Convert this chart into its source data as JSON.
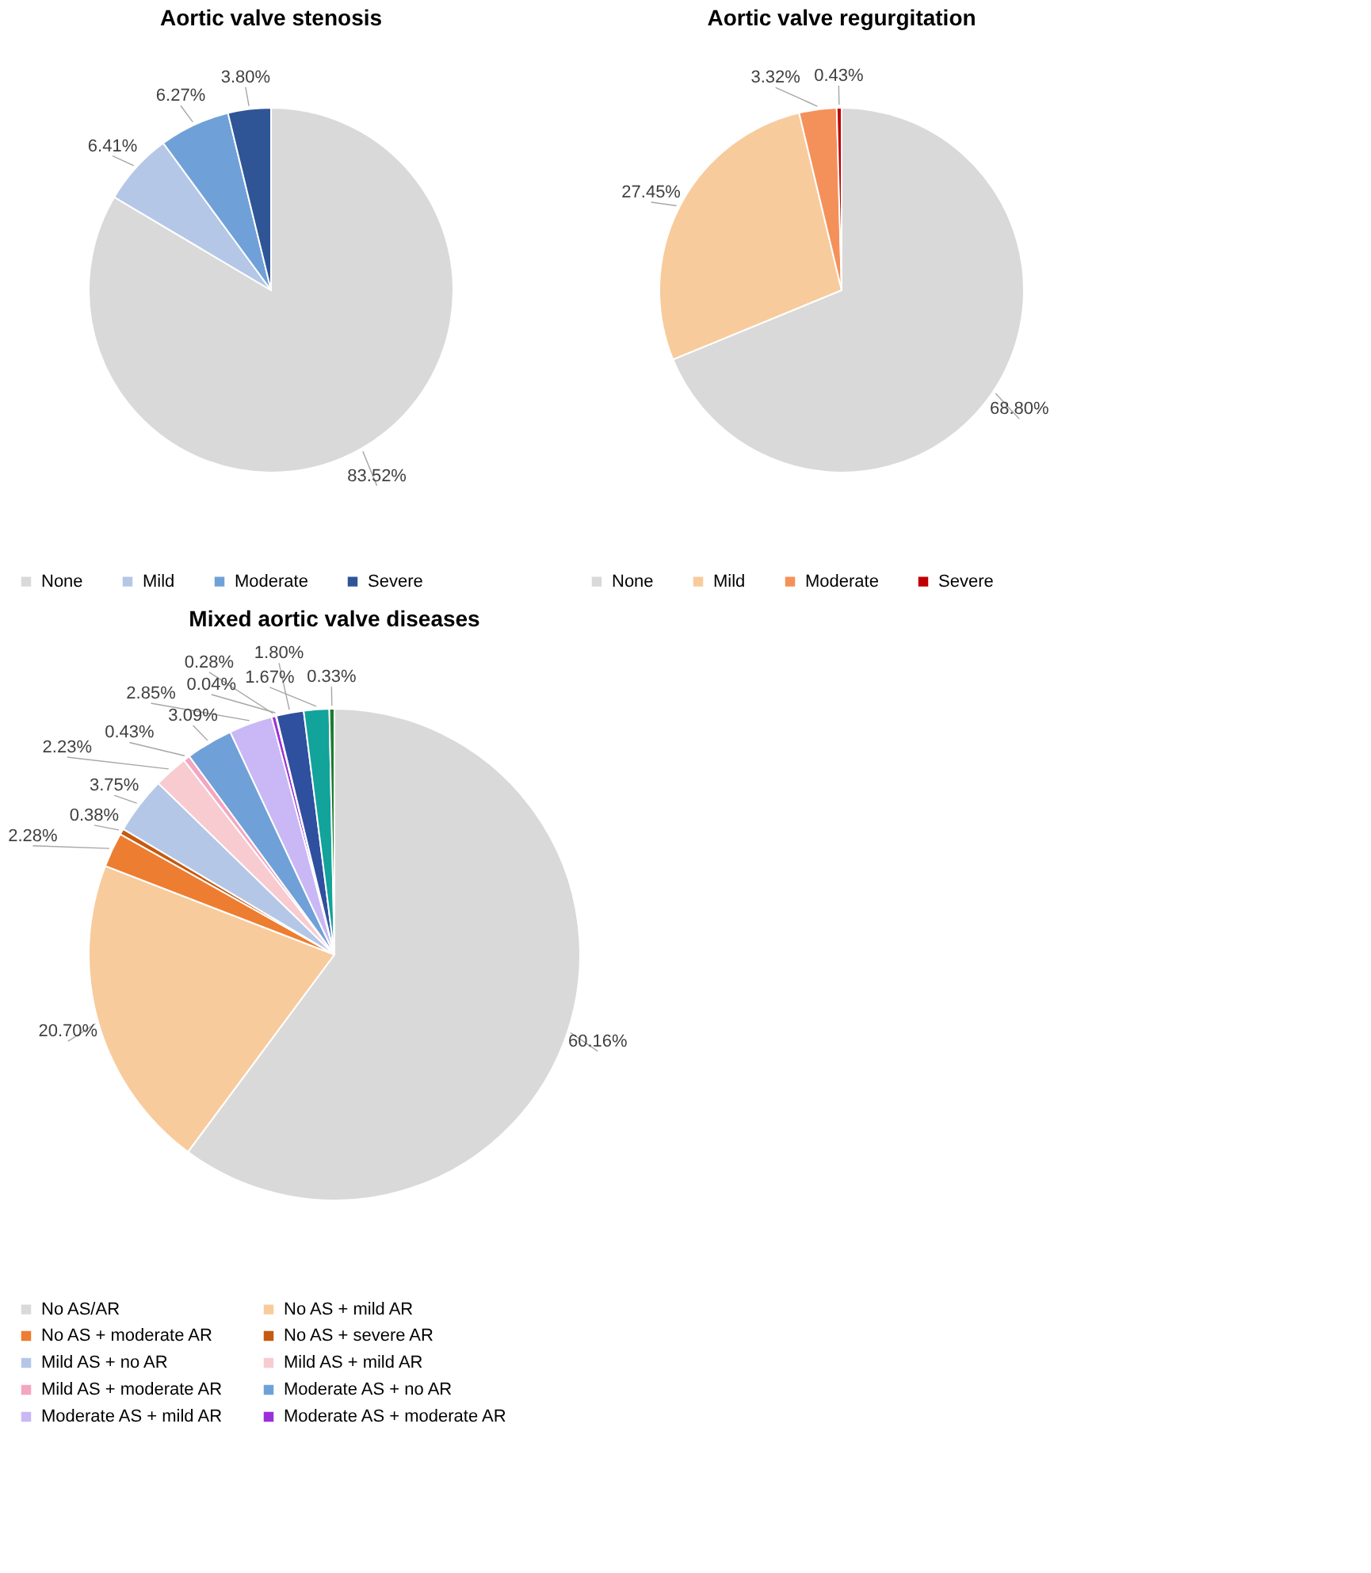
{
  "chart_data": [
    {
      "type": "pie",
      "title": "Aortic valve stenosis",
      "categories": [
        "None",
        "Mild",
        "Moderate",
        "Severe"
      ],
      "values": [
        83.52,
        6.41,
        6.27,
        3.8
      ],
      "value_labels": [
        "83.52%",
        "6.41%",
        "6.27%",
        "3.80%"
      ],
      "colors": [
        "#d9d9d9",
        "#b4c7e7",
        "#6fa1d8",
        "#2f5597"
      ],
      "legend": "bottom"
    },
    {
      "type": "pie",
      "title": "Aortic valve regurgitation",
      "categories": [
        "None",
        "Mild",
        "Moderate",
        "Severe"
      ],
      "values": [
        68.8,
        27.45,
        3.32,
        0.43
      ],
      "value_labels": [
        "68.80%",
        "27.45%",
        "3.32%",
        "0.43%"
      ],
      "colors": [
        "#d9d9d9",
        "#f8cb9c",
        "#f4915a",
        "#c00000"
      ],
      "legend": "bottom"
    },
    {
      "type": "pie",
      "title": "Mixed aortic valve diseases",
      "categories": [
        "No AS/AR",
        "No AS + mild AR",
        "No AS + moderate AR",
        "No AS + severe AR",
        "Mild AS + no AR",
        "Mild AS + mild AR",
        "Mild AS + moderate AR",
        "Moderate AS + no AR",
        "Moderate AS + mild AR",
        "Moderate AS + moderate AR",
        null,
        null,
        null,
        null
      ],
      "values": [
        60.16,
        20.7,
        2.28,
        0.38,
        3.75,
        2.23,
        0.43,
        3.09,
        2.85,
        0.28,
        0.04,
        1.8,
        1.67,
        0.33
      ],
      "value_labels": [
        "60.16%",
        "20.70%",
        "2.28%",
        "0.38%",
        "3.75%",
        "2.23%",
        "0.43%",
        "3.09%",
        "2.85%",
        "0.28%",
        "0.04%",
        "1.80%",
        "1.67%",
        "0.33%"
      ],
      "colors": [
        "#d9d9d9",
        "#f8cb9c",
        "#ed7d31",
        "#c55a11",
        "#b4c7e7",
        "#f8cbd0",
        "#f4a6c0",
        "#6fa1d8",
        "#c9b8f5",
        "#9b30d9",
        "#5b2c8f",
        "#2f4f9f",
        "#12a39a",
        "#1e7b2f"
      ],
      "legend": "bottom"
    }
  ]
}
